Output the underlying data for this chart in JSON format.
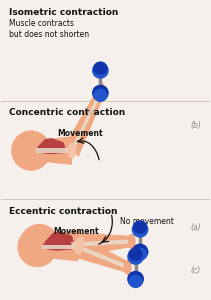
{
  "bg_color": "#f5f0eb",
  "sections": [
    {
      "title": "Isometric contraction",
      "subtitle": "Muscle contracts\nbut does not shorten",
      "label": "No movement",
      "panel_label": "(a)"
    },
    {
      "title": "Concentric contraction",
      "subtitle": "",
      "label": "Movement",
      "panel_label": "(b)"
    },
    {
      "title": "Eccentric contraction",
      "subtitle": "",
      "label": "Movement",
      "panel_label": "(c)"
    }
  ],
  "skin_color": "#f0a882",
  "skin_light": "#f5c4a8",
  "skin_outline": "#d07850",
  "muscle_color": "#b84040",
  "muscle_dark": "#8b2020",
  "bone_color": "#e8e0d0",
  "bone_outline": "#c8b898",
  "dumbbell_blue": "#2255cc",
  "dumbbell_dark": "#1133aa",
  "bar_color": "#888888",
  "text_color": "#111111",
  "label_color": "#111111",
  "panel_color": "#888888",
  "divider_color": "#ccbbaa",
  "arrow_color": "#111111",
  "title_fontsize": 6.5,
  "subtitle_fontsize": 5.5,
  "label_fontsize": 5.5,
  "panel_fontsize": 5.5
}
